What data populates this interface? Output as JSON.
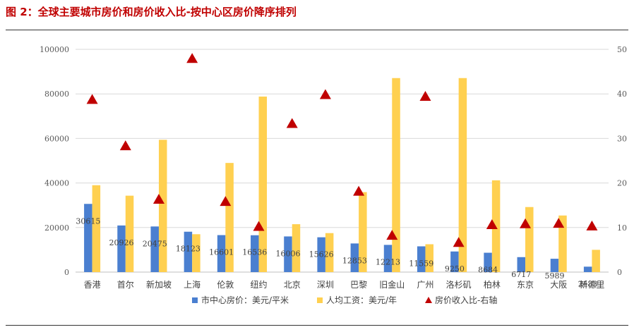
{
  "figure": {
    "title": "图 2：全球主要城市房价和房价收入比-按中心区房价降序排列"
  },
  "chart_data": {
    "type": "bar",
    "categories": [
      "香港",
      "首尔",
      "新加坡",
      "上海",
      "伦敦",
      "纽约",
      "北京",
      "深圳",
      "巴黎",
      "旧金山",
      "广州",
      "洛杉矶",
      "柏林",
      "东京",
      "大阪",
      "新德里"
    ],
    "series": [
      {
        "name": "市中心房价：美元/平米",
        "type": "bar",
        "axis": "left",
        "color": "#4a7fd0",
        "values": [
          30615,
          20926,
          20475,
          18123,
          16601,
          16536,
          16006,
          15626,
          12853,
          12213,
          11559,
          9250,
          8684,
          6717,
          5989,
          2433
        ],
        "labels": [
          "30615",
          "20926",
          "20475",
          "18123",
          "16601",
          "16536",
          "16006",
          "15626",
          "12853",
          "12213",
          "11559",
          "9250",
          "8684",
          "6717",
          "5989",
          "2433"
        ]
      },
      {
        "name": "人均工资：美元/年",
        "type": "bar",
        "axis": "left",
        "color": "#ffd050",
        "values": [
          39000,
          34300,
          59400,
          17000,
          49000,
          78800,
          21500,
          17500,
          35900,
          87100,
          12500,
          87100,
          41200,
          29200,
          25400,
          10000
        ]
      },
      {
        "name": "房价收入比-右轴",
        "type": "scatter",
        "marker": "triangle",
        "axis": "right",
        "color": "#c00000",
        "values": [
          38.7,
          28.3,
          16.3,
          47.9,
          15.8,
          10.2,
          33.3,
          39.8,
          18.1,
          8.2,
          39.4,
          6.6,
          10.6,
          10.8,
          10.9,
          10.3
        ]
      }
    ],
    "y_left": {
      "ylim": [
        0,
        100000
      ],
      "ticks": [
        "0",
        "20000",
        "40000",
        "60000",
        "80000",
        "100000"
      ]
    },
    "y_right": {
      "ylim": [
        0,
        50
      ],
      "ticks": [
        "0",
        "10",
        "20",
        "30",
        "40",
        "50"
      ]
    },
    "grid": true,
    "legend_position": "bottom"
  }
}
